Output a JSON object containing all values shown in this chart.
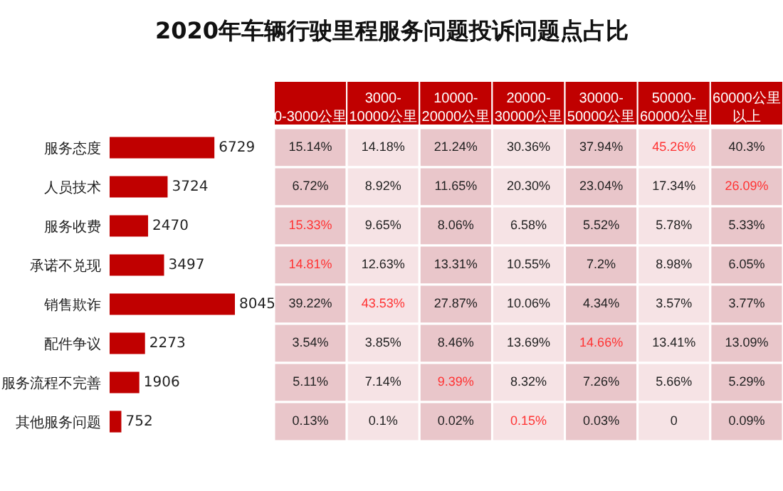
{
  "chart_data": [
    {
      "type": "bar",
      "title": "2020年车辆行驶里程服务问题投诉问题点占比",
      "orientation": "horizontal",
      "color": "#c00000",
      "data_labels": true,
      "categories": [
        "服务态度",
        "人员技术",
        "服务收费",
        "承诺不兑现",
        "销售欺诈",
        "配件争议",
        "服务流程不完善",
        "其他服务问题"
      ],
      "values": [
        6729,
        3724,
        2470,
        3497,
        8045,
        2273,
        1906,
        752
      ]
    },
    {
      "type": "heatmap",
      "categories": [
        "0-3000公里",
        "3000-10000公里",
        "10000-20000公里",
        "20000-30000公里",
        "30000-50000公里",
        "50000-60000公里",
        "60000公里以上"
      ],
      "y_categories": [
        null,
        null,
        null,
        null,
        null,
        null,
        null,
        null
      ],
      "tick_labels": "x",
      "colors": [
        "#e9c6ca",
        "#f6e3e5",
        "#e9c6ca",
        "#f6e3e5",
        "#e9c6ca",
        "#f6e3e5",
        "#e9c6ca"
      ],
      "cells": [
        [
          15.14,
          14.18,
          21.24,
          30.36,
          37.94,
          45.26,
          40.3
        ],
        [
          6.72,
          8.92,
          11.65,
          20.3,
          23.04,
          17.34,
          26.09
        ],
        [
          15.33,
          9.65,
          8.06,
          6.58,
          5.52,
          5.78,
          5.33
        ],
        [
          14.81,
          12.63,
          13.31,
          10.55,
          7.2,
          8.98,
          6.05
        ],
        [
          39.22,
          43.53,
          27.87,
          10.06,
          4.34,
          3.57,
          3.77
        ],
        [
          3.54,
          3.85,
          8.46,
          13.69,
          14.66,
          13.41,
          13.09
        ],
        [
          5.11,
          7.14,
          9.39,
          8.32,
          7.26,
          5.66,
          5.29
        ],
        [
          0.13,
          0.1,
          0.02,
          0.15,
          0.03,
          0,
          0.09
        ]
      ],
      "cell_labels": [
        [
          "15.14%",
          "14.18%",
          "21.24%",
          "30.36%",
          "37.94%",
          "45.26%",
          "40.3%"
        ],
        [
          "6.72%",
          "8.92%",
          "11.65%",
          "20.30%",
          "23.04%",
          "17.34%",
          "26.09%"
        ],
        [
          "15.33%",
          "9.65%",
          "8.06%",
          "6.58%",
          "5.52%",
          "5.78%",
          "5.33%"
        ],
        [
          "14.81%",
          "12.63%",
          "13.31%",
          "10.55%",
          "7.2%",
          "8.98%",
          "6.05%"
        ],
        [
          "39.22%",
          "43.53%",
          "27.87%",
          "10.06%",
          "4.34%",
          "3.57%",
          "3.77%"
        ],
        [
          "3.54%",
          "3.85%",
          "8.46%",
          "13.69%",
          "14.66%",
          "13.41%",
          "13.09%"
        ],
        [
          "5.11%",
          "7.14%",
          "9.39%",
          "8.32%",
          "7.26%",
          "5.66%",
          "5.29%"
        ],
        [
          "0.13%",
          "0.1%",
          "0.02%",
          "0.15%",
          "0.03%",
          "0",
          "0.09%"
        ]
      ]
    }
  ]
}
